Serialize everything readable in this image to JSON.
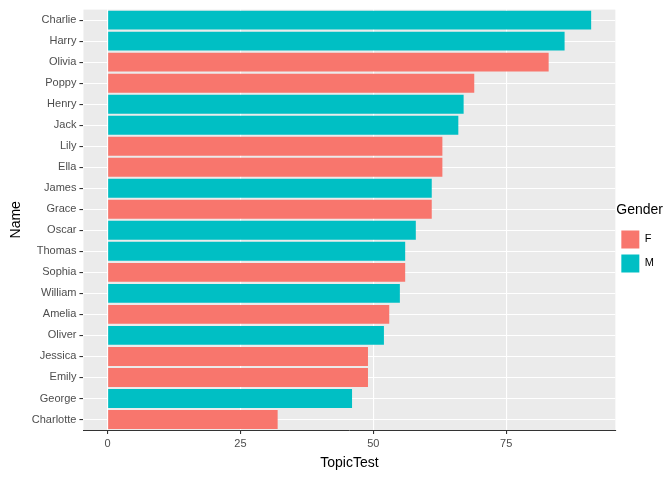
{
  "chart_data": {
    "type": "bar",
    "orientation": "horizontal",
    "x_label": "TopicTest",
    "y_label": "Name",
    "legend_title": "Gender",
    "legend": "right",
    "categories": [
      "Charlie",
      "Harry",
      "Olivia",
      "Poppy",
      "Henry",
      "Jack",
      "Lily",
      "Ella",
      "James",
      "Grace",
      "Oscar",
      "Thomas",
      "Sophia",
      "William",
      "Amelia",
      "Oliver",
      "Jessica",
      "Emily",
      "George",
      "Charlotte"
    ],
    "series": [
      {
        "name": "F",
        "color": "#F8766D",
        "values": [
          null,
          null,
          83,
          69,
          null,
          null,
          63,
          63,
          null,
          61,
          null,
          null,
          56,
          null,
          53,
          null,
          49,
          49,
          null,
          32
        ]
      },
      {
        "name": "M",
        "color": "#00BFC4",
        "values": [
          91,
          86,
          null,
          null,
          67,
          66,
          null,
          null,
          61,
          null,
          58,
          56,
          null,
          55,
          null,
          52,
          null,
          null,
          46,
          null
        ]
      }
    ],
    "xlim": [
      -4.55,
      95.55
    ],
    "xticks": [
      0,
      25,
      50,
      75
    ],
    "grid": true
  }
}
